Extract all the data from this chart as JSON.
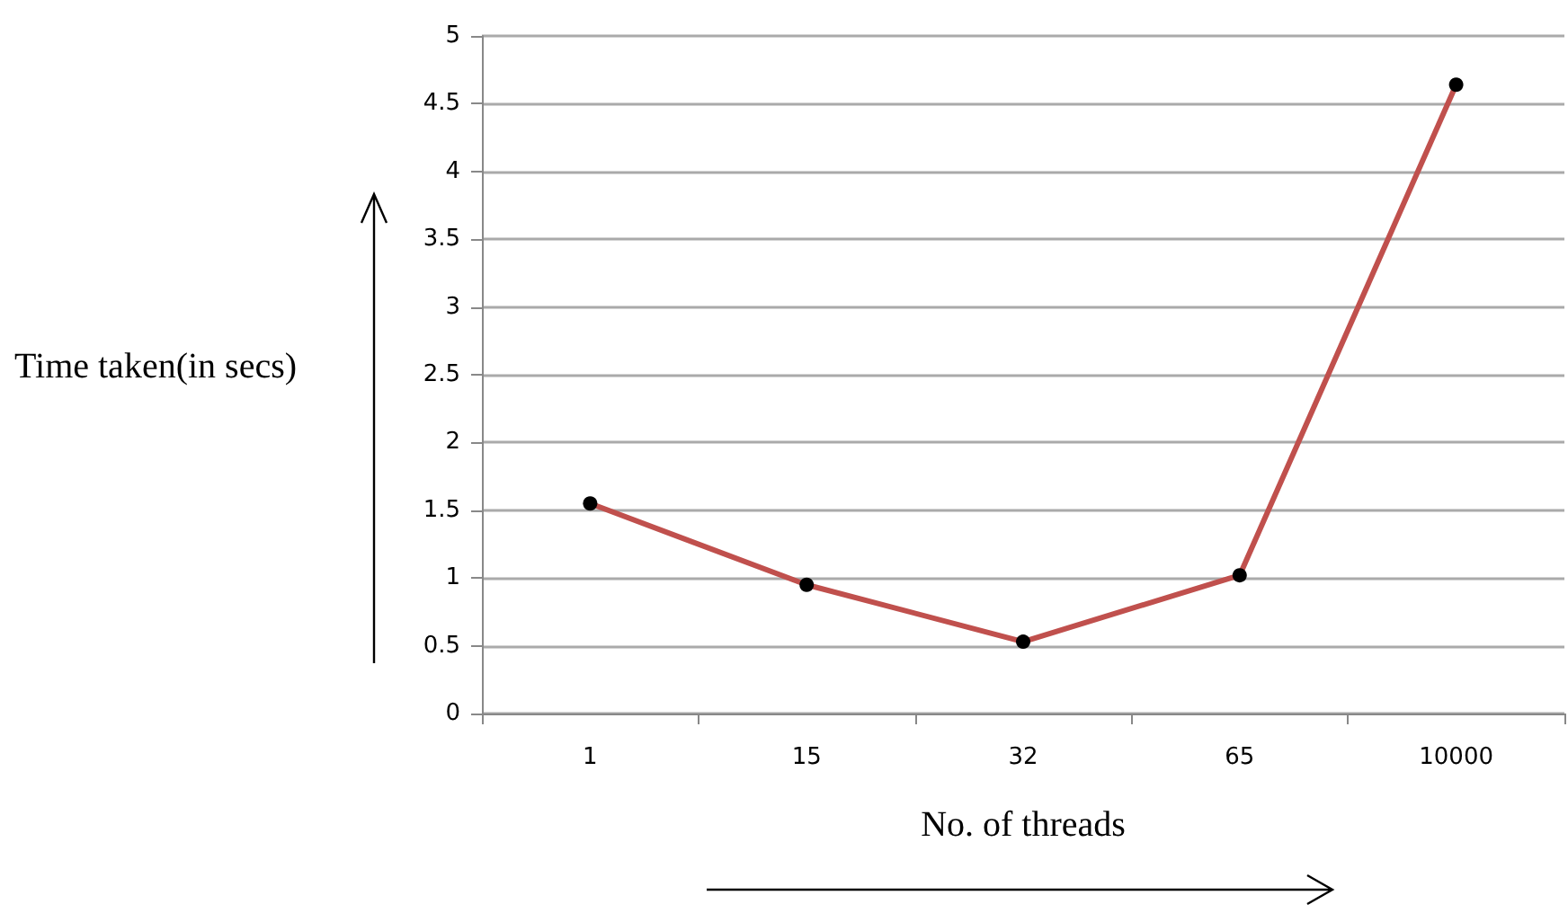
{
  "chart_data": {
    "type": "line",
    "xlabel": "No. of threads",
    "ylabel": "Time taken(in secs)",
    "categories": [
      "1",
      "15",
      "32",
      "65",
      "10000"
    ],
    "series": [
      {
        "color": "#c0504d",
        "values": [
          1.55,
          0.95,
          0.53,
          1.02,
          4.64
        ]
      }
    ],
    "ylim": [
      0,
      5
    ],
    "yticks": [
      0,
      0.5,
      1,
      1.5,
      2,
      2.5,
      3,
      3.5,
      4,
      4.5,
      5
    ],
    "grid": "y",
    "marker": "circle",
    "line_style": "solid"
  }
}
